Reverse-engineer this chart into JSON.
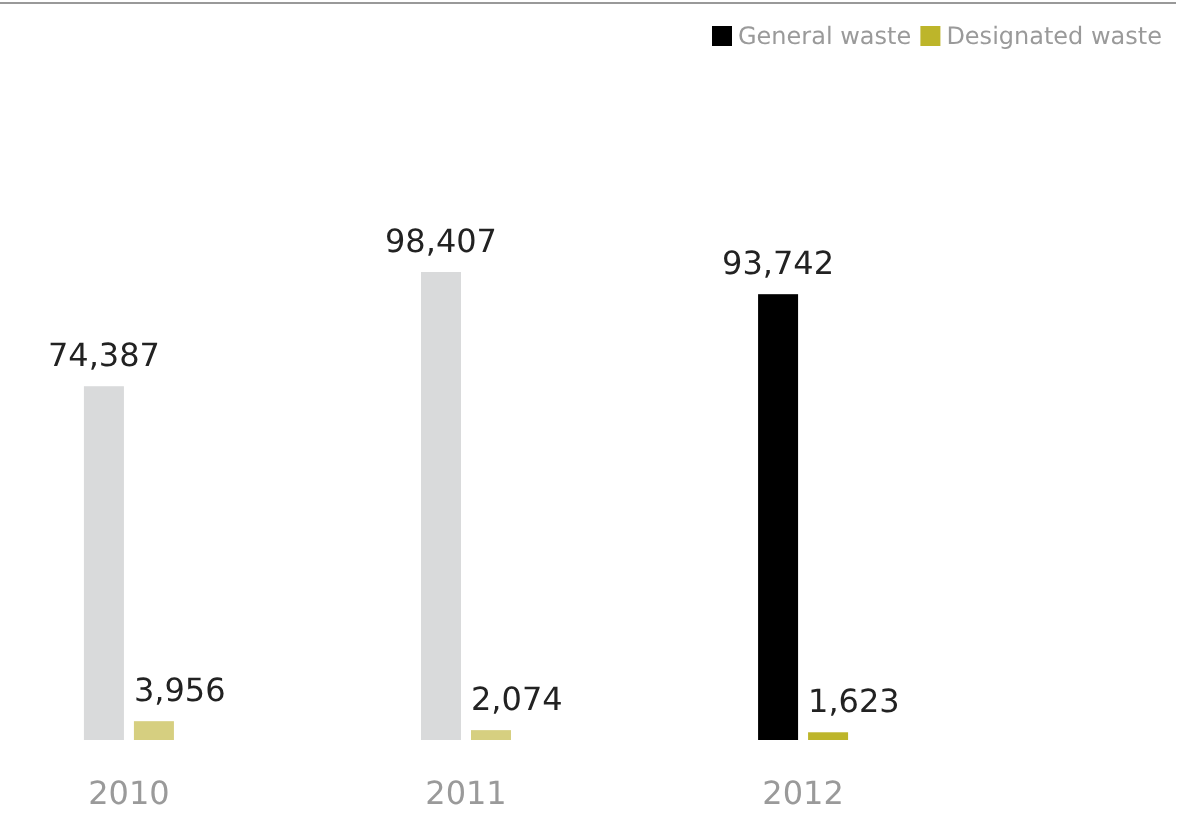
{
  "chart_data": {
    "type": "bar",
    "categories": [
      "2010",
      "2011",
      "2012"
    ],
    "series": [
      {
        "name": "General waste",
        "color": "#000000",
        "colors": [
          "#d9dadb",
          "#d9dadb",
          "#000000"
        ],
        "values": [
          74387,
          98407,
          93742
        ],
        "value_labels": [
          "74,387",
          "98,407",
          "93,742"
        ]
      },
      {
        "name": "Designated waste",
        "color": "#bdb52a",
        "colors": [
          "#d6cf80",
          "#d6cf80",
          "#bdb52a"
        ],
        "values": [
          3956,
          2074,
          1623
        ],
        "value_labels": [
          "3,956",
          "2,074",
          "1,623"
        ]
      }
    ],
    "legend": "top right"
  }
}
